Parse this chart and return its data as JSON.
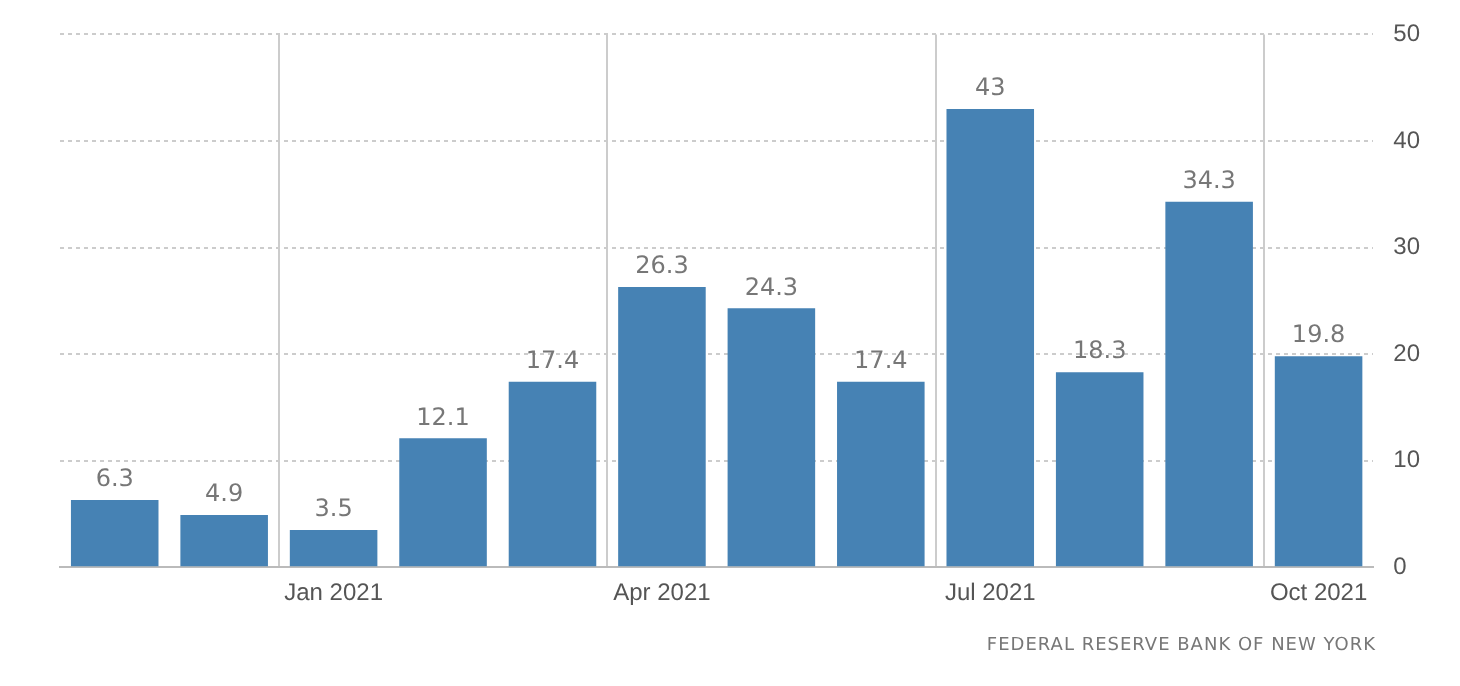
{
  "chart_data": {
    "type": "bar",
    "categories": [
      null,
      null,
      "Jan 2021",
      null,
      null,
      "Apr 2021",
      null,
      null,
      "Jul 2021",
      null,
      null,
      "Oct 2021"
    ],
    "values": [
      6.3,
      4.9,
      3.5,
      12.1,
      17.4,
      26.3,
      24.3,
      17.4,
      43,
      18.3,
      34.3,
      19.8
    ],
    "color": "#4682b4",
    "ylim": [
      0,
      50
    ],
    "yticks": [
      0,
      10,
      20,
      30,
      40,
      50
    ],
    "grid": true,
    "data_labels": true,
    "legend": false,
    "annotations": [
      "FEDERAL RESERVE BANK OF NEW YORK"
    ]
  }
}
